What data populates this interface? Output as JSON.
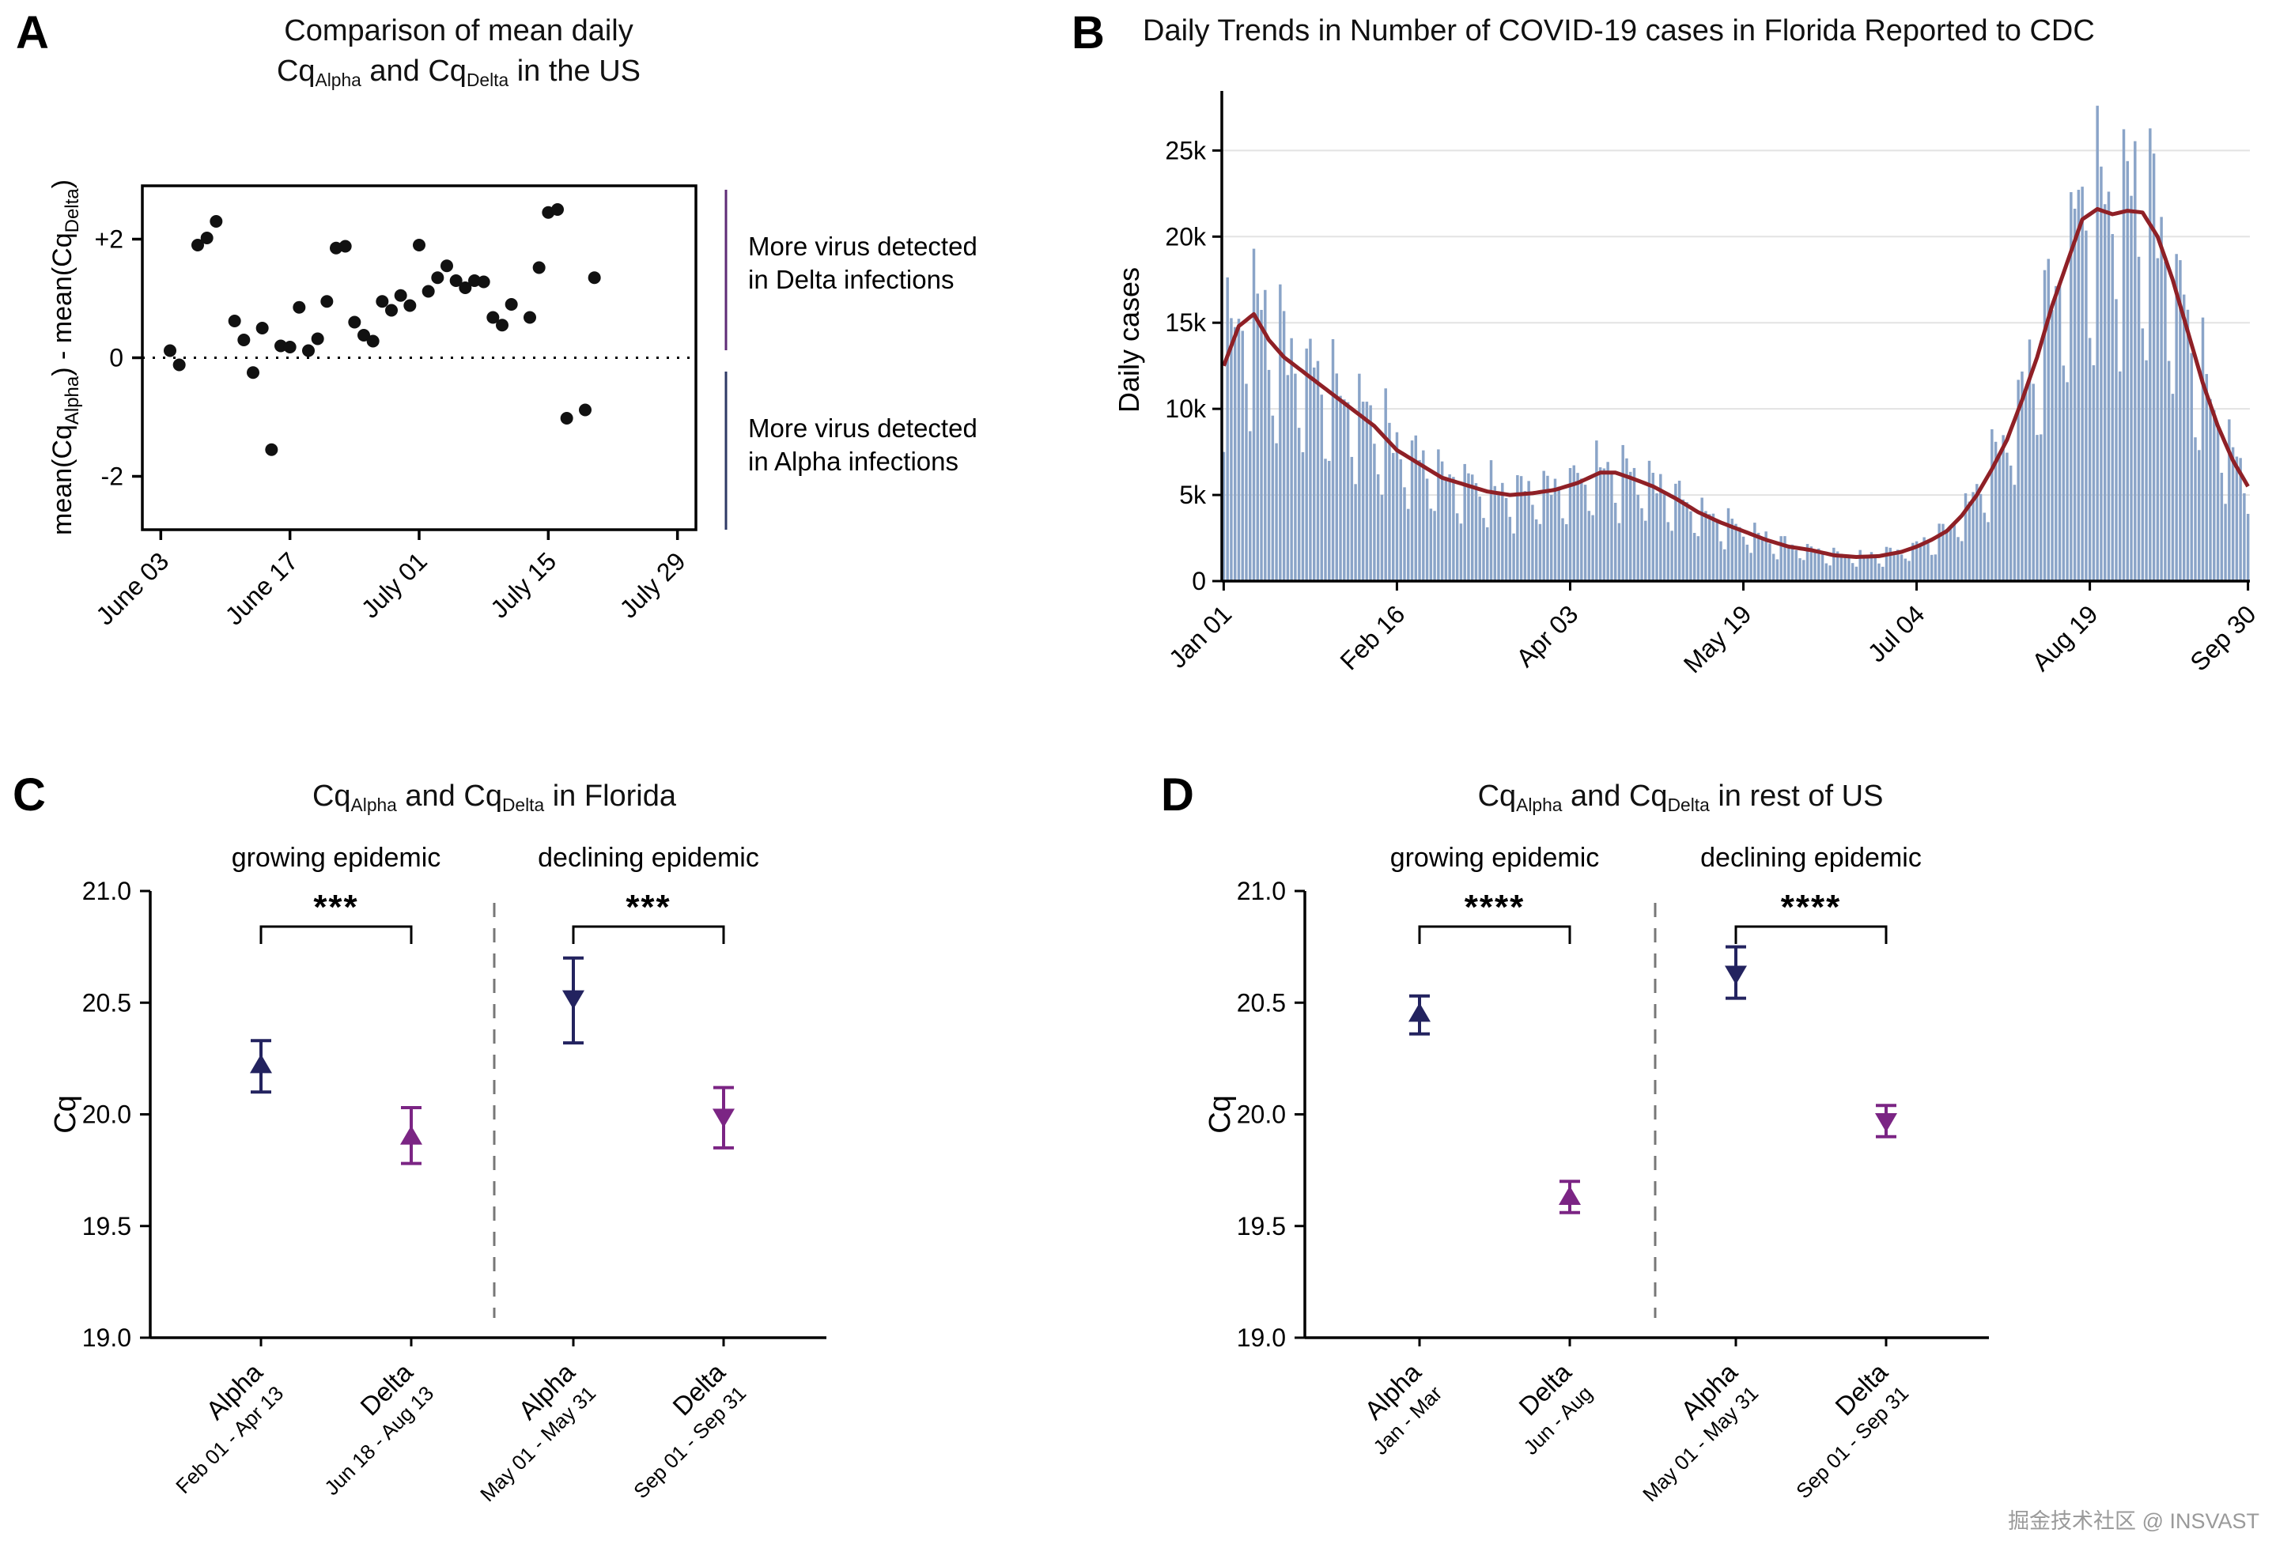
{
  "panel_labels": {
    "a": "A",
    "b": "B",
    "c": "C",
    "d": "D"
  },
  "watermark": "掘金技术社区 @ INSVAST",
  "colors": {
    "navy": "#23235f",
    "purple": "#7b2584",
    "bar": "#8aa4c8",
    "trend_line": "#8f2026",
    "grid": "#e3e3e3",
    "axis": "#000000",
    "dash_divider": "#777777"
  },
  "chart_data": [
    {
      "panel": "A",
      "type": "scatter",
      "title_line1": "Comparison of mean daily",
      "title_line2": {
        "cq1": "Cq",
        "sub1": "Alpha",
        "mid": " and Cq",
        "sub2": "Delta",
        "tail": " in the US"
      },
      "ylabel": {
        "pre": "mean(Cq",
        "sub1": "Alpha",
        "mid": ") - mean(Cq",
        "sub2": "Delta",
        "post": ")"
      },
      "ylim": [
        -2.9,
        2.9
      ],
      "yticks": [
        {
          "value": 2,
          "label": "+2"
        },
        {
          "value": 0,
          "label": "0"
        },
        {
          "value": -2,
          "label": "-2"
        }
      ],
      "zero_line": 0,
      "xlim_days": [
        -2,
        58
      ],
      "xticks": [
        {
          "day": 0,
          "label": "June 03"
        },
        {
          "day": 14,
          "label": "June 17"
        },
        {
          "day": 28,
          "label": "July 01"
        },
        {
          "day": 42,
          "label": "July 15"
        },
        {
          "day": 56,
          "label": "July 29"
        }
      ],
      "points_day_value": [
        [
          1,
          0.12
        ],
        [
          2,
          -0.12
        ],
        [
          4,
          1.9
        ],
        [
          5,
          2.02
        ],
        [
          6,
          2.3
        ],
        [
          8,
          0.62
        ],
        [
          9,
          0.3
        ],
        [
          10,
          -0.25
        ],
        [
          11,
          0.5
        ],
        [
          12,
          -1.55
        ],
        [
          13,
          0.2
        ],
        [
          14,
          0.18
        ],
        [
          15,
          0.85
        ],
        [
          16,
          0.12
        ],
        [
          17,
          0.32
        ],
        [
          18,
          0.95
        ],
        [
          19,
          1.85
        ],
        [
          20,
          1.88
        ],
        [
          21,
          0.6
        ],
        [
          22,
          0.38
        ],
        [
          23,
          0.28
        ],
        [
          24,
          0.95
        ],
        [
          25,
          0.8
        ],
        [
          26,
          1.05
        ],
        [
          27,
          0.88
        ],
        [
          28,
          1.9
        ],
        [
          29,
          1.12
        ],
        [
          30,
          1.35
        ],
        [
          31,
          1.55
        ],
        [
          32,
          1.3
        ],
        [
          33,
          1.18
        ],
        [
          34,
          1.3
        ],
        [
          35,
          1.28
        ],
        [
          36,
          0.68
        ],
        [
          37,
          0.55
        ],
        [
          38,
          0.9
        ],
        [
          40,
          0.68
        ],
        [
          41,
          1.52
        ],
        [
          42,
          2.45
        ],
        [
          43,
          2.5
        ],
        [
          44,
          -1.02
        ],
        [
          46,
          -0.88
        ],
        [
          47,
          1.35
        ]
      ],
      "annotations": [
        {
          "line1": "More virus detected",
          "line2": "in Delta infections",
          "color": "#5e2b76"
        },
        {
          "line1": "More virus detected",
          "line2": "in Alpha infections",
          "color": "#2e3a66"
        }
      ]
    },
    {
      "panel": "B",
      "type": "bar+line",
      "title": "Daily Trends in Number of COVID-19 cases in Florida Reported to CDC",
      "ylabel": "Daily cases",
      "ylim": [
        0,
        28000
      ],
      "yticks": [
        {
          "value": 0,
          "label": "0"
        },
        {
          "value": 5000,
          "label": "5k"
        },
        {
          "value": 10000,
          "label": "10k"
        },
        {
          "value": 15000,
          "label": "15k"
        },
        {
          "value": 20000,
          "label": "20k"
        },
        {
          "value": 25000,
          "label": "25k"
        }
      ],
      "days_total": 273,
      "xticks": [
        {
          "day": 0,
          "label": "Jan 01"
        },
        {
          "day": 46,
          "label": "Feb 16"
        },
        {
          "day": 92,
          "label": "Apr 03"
        },
        {
          "day": 138,
          "label": "May 19"
        },
        {
          "day": 184,
          "label": "Jul 04"
        },
        {
          "day": 230,
          "label": "Aug 19"
        },
        {
          "day": 272,
          "label": "Sep 30"
        }
      ],
      "trend_7day_avg": [
        [
          0,
          12500
        ],
        [
          4,
          14800
        ],
        [
          8,
          15500
        ],
        [
          12,
          14000
        ],
        [
          16,
          13000
        ],
        [
          22,
          12000
        ],
        [
          28,
          11000
        ],
        [
          34,
          10000
        ],
        [
          40,
          9000
        ],
        [
          46,
          7600
        ],
        [
          52,
          6800
        ],
        [
          58,
          6000
        ],
        [
          64,
          5600
        ],
        [
          70,
          5200
        ],
        [
          76,
          5000
        ],
        [
          82,
          5100
        ],
        [
          88,
          5300
        ],
        [
          94,
          5700
        ],
        [
          100,
          6300
        ],
        [
          104,
          6300
        ],
        [
          108,
          6000
        ],
        [
          114,
          5500
        ],
        [
          120,
          4800
        ],
        [
          126,
          4000
        ],
        [
          132,
          3400
        ],
        [
          138,
          2900
        ],
        [
          144,
          2400
        ],
        [
          150,
          2000
        ],
        [
          156,
          1800
        ],
        [
          162,
          1500
        ],
        [
          168,
          1400
        ],
        [
          174,
          1450
        ],
        [
          180,
          1700
        ],
        [
          184,
          2000
        ],
        [
          188,
          2400
        ],
        [
          192,
          2900
        ],
        [
          196,
          3800
        ],
        [
          200,
          5000
        ],
        [
          204,
          6500
        ],
        [
          208,
          8200
        ],
        [
          212,
          10500
        ],
        [
          216,
          13000
        ],
        [
          220,
          16000
        ],
        [
          224,
          18500
        ],
        [
          228,
          21000
        ],
        [
          232,
          21600
        ],
        [
          236,
          21300
        ],
        [
          240,
          21500
        ],
        [
          244,
          21400
        ],
        [
          248,
          20000
        ],
        [
          252,
          17500
        ],
        [
          256,
          14500
        ],
        [
          260,
          11500
        ],
        [
          264,
          9000
        ],
        [
          268,
          7000
        ],
        [
          272,
          5500
        ]
      ],
      "weekly_factors": [
        0.6,
        1.25,
        1.15,
        1.03,
        1.1,
        0.95,
        0.7
      ],
      "bar_jitter_amplitude": 0.1,
      "bar_cap": 27600
    },
    {
      "panel": "C",
      "type": "errorbar",
      "title": {
        "cq1": "Cq",
        "sub1": "Alpha",
        "mid": " and Cq",
        "sub2": "Delta",
        "tail": " in Florida"
      },
      "ylabel": "Cq",
      "ylim": [
        19.0,
        21.0
      ],
      "yticks": [
        {
          "value": 21.0,
          "label": "21.0"
        },
        {
          "value": 20.5,
          "label": "20.5"
        },
        {
          "value": 20.0,
          "label": "20.0"
        },
        {
          "value": 19.5,
          "label": "19.5"
        },
        {
          "value": 19.0,
          "label": "19.0"
        }
      ],
      "group_titles": [
        "growing epidemic",
        "declining epidemic"
      ],
      "significance": [
        "***",
        "***"
      ],
      "points": [
        {
          "label": "Alpha",
          "sublabel": "Feb 01 - Apr 13",
          "mean": 20.22,
          "ci_low": 20.1,
          "ci_high": 20.33,
          "color": "navy",
          "marker": "up"
        },
        {
          "label": "Delta",
          "sublabel": "Jun 18 - Aug 13",
          "mean": 19.9,
          "ci_low": 19.78,
          "ci_high": 20.03,
          "color": "purple",
          "marker": "up"
        },
        {
          "label": "Alpha",
          "sublabel": "May 01 - May 31",
          "mean": 20.52,
          "ci_low": 20.32,
          "ci_high": 20.7,
          "color": "navy",
          "marker": "down"
        },
        {
          "label": "Delta",
          "sublabel": "Sep 01 - Sep 31",
          "mean": 19.99,
          "ci_low": 19.85,
          "ci_high": 20.12,
          "color": "purple",
          "marker": "down"
        }
      ]
    },
    {
      "panel": "D",
      "type": "errorbar",
      "title": {
        "cq1": "Cq",
        "sub1": "Alpha",
        "mid": " and Cq",
        "sub2": "Delta",
        "tail": " in rest of US"
      },
      "ylabel": "Cq",
      "ylim": [
        19.0,
        21.0
      ],
      "yticks": [
        {
          "value": 21.0,
          "label": "21.0"
        },
        {
          "value": 20.5,
          "label": "20.5"
        },
        {
          "value": 20.0,
          "label": "20.0"
        },
        {
          "value": 19.5,
          "label": "19.5"
        },
        {
          "value": 19.0,
          "label": "19.0"
        }
      ],
      "group_titles": [
        "growing epidemic",
        "declining epidemic"
      ],
      "significance": [
        "****",
        "****"
      ],
      "points": [
        {
          "label": "Alpha",
          "sublabel": "Jan - Mar",
          "mean": 20.45,
          "ci_low": 20.36,
          "ci_high": 20.53,
          "color": "navy",
          "marker": "up"
        },
        {
          "label": "Delta",
          "sublabel": "Jun - Aug",
          "mean": 19.63,
          "ci_low": 19.56,
          "ci_high": 19.7,
          "color": "purple",
          "marker": "up"
        },
        {
          "label": "Alpha",
          "sublabel": "May 01 - May 31",
          "mean": 20.63,
          "ci_low": 20.52,
          "ci_high": 20.75,
          "color": "navy",
          "marker": "down"
        },
        {
          "label": "Delta",
          "sublabel": "Sep 01 - Sep 31",
          "mean": 19.97,
          "ci_low": 19.9,
          "ci_high": 20.04,
          "color": "purple",
          "marker": "down"
        }
      ]
    }
  ]
}
